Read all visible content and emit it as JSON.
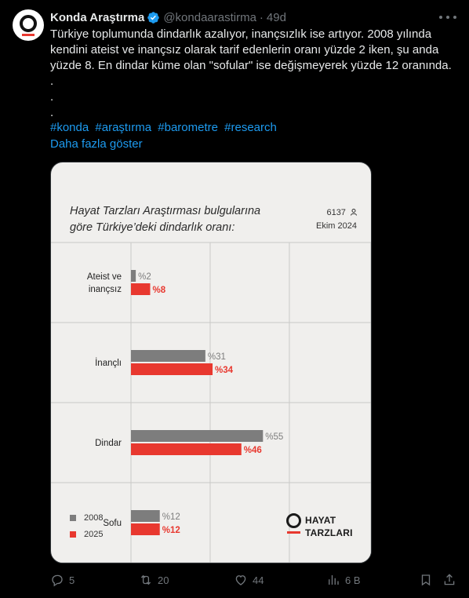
{
  "tweet": {
    "author_name": "Konda Araştırma",
    "handle": "@kondaarastirma",
    "separator": "·",
    "time": "49d",
    "text_lines": [
      "Türkiye toplumunda dindarlık azalıyor, inançsızlık ise artıyor. 2008 yılında",
      "kendini ateist ve inançsız olarak tarif edenlerin oranı yüzde 2 iken, şu anda",
      "yüzde 8. En dindar küme olan \"sofular\" ise değişmeyerek yüzde 12 oranında.",
      ".",
      ".",
      "."
    ],
    "hashtags": [
      "#konda",
      "#araştırma",
      "#barometre",
      "#research"
    ],
    "show_more": "Daha fazla göster"
  },
  "card": {
    "title_lines": [
      "Hayat Tarzları Araştırması bulgularına",
      "göre Türkiye’deki dindarlık oranı:"
    ],
    "sample_size": "6137",
    "date": "Ekim 2024",
    "brand_line1": "HAYAT",
    "brand_line2": "TARZLARI"
  },
  "chart_data": {
    "type": "bar",
    "orientation": "horizontal",
    "categories": [
      "Ateist ve inançsız",
      "İnançlı",
      "Dindar",
      "Sofu"
    ],
    "series": [
      {
        "name": "2008",
        "values": [
          2,
          31,
          55,
          12
        ],
        "labels": [
          "%2",
          "%31",
          "%55",
          "%12"
        ],
        "color": "#7d7d7d"
      },
      {
        "name": "2025",
        "values": [
          8,
          34,
          46,
          12
        ],
        "labels": [
          "%8",
          "%34",
          "%46",
          "%12"
        ],
        "color": "#e8382f"
      }
    ],
    "xlim": [
      0,
      100
    ],
    "grid": true,
    "legend": "bottom-left"
  },
  "actions": {
    "replies": "5",
    "reposts": "20",
    "likes": "44",
    "views": "6 B"
  },
  "colors": {
    "background": "#000000",
    "text": "#e7e9ea",
    "muted": "#71767b",
    "link": "#1d9bf0",
    "verified": "#1d9bf0",
    "card_background": "#f0efed",
    "accent_red": "#e8382f"
  }
}
